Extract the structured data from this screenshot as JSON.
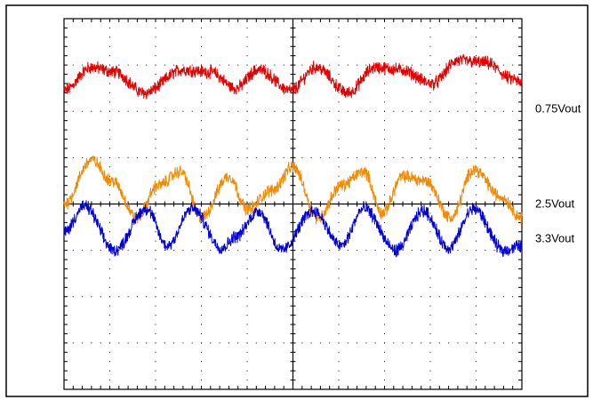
{
  "chart_data": {
    "type": "line",
    "title": "",
    "xlabel": "",
    "ylabel": "",
    "grid": true,
    "x_divisions": 10,
    "y_divisions": 8,
    "xlim": [
      0,
      10
    ],
    "ylim": [
      0,
      8
    ],
    "series": [
      {
        "name": "0.75Vout",
        "color": "#e60000",
        "offset": 6.05,
        "x": [
          0,
          0.6,
          1.1,
          1.75,
          2.6,
          3.2,
          3.75,
          4.25,
          4.95,
          5.5,
          6.2,
          6.8,
          7.35,
          8.05,
          8.6,
          9.2,
          9.8,
          10
        ],
        "values": [
          6.45,
          6.95,
          6.85,
          6.4,
          6.9,
          6.85,
          6.5,
          6.9,
          6.45,
          6.95,
          6.4,
          6.95,
          6.9,
          6.6,
          7.1,
          7.05,
          6.7,
          6.6
        ]
      },
      {
        "name": "2.5Vout",
        "color": "#f08a00",
        "offset": 4.0,
        "x": [
          0,
          0.6,
          1.05,
          1.6,
          2.05,
          2.55,
          3.0,
          3.6,
          4.0,
          4.55,
          5.0,
          5.55,
          6.05,
          6.55,
          6.95,
          7.4,
          7.9,
          8.45,
          8.95,
          9.55,
          10
        ],
        "values": [
          4.0,
          4.95,
          4.5,
          3.7,
          4.4,
          4.7,
          3.7,
          4.6,
          3.9,
          4.3,
          4.8,
          3.7,
          4.4,
          4.7,
          3.8,
          4.6,
          4.5,
          3.7,
          4.75,
          4.15,
          3.7
        ]
      },
      {
        "name": "3.3Vout",
        "color": "#0000d8",
        "offset": 3.25,
        "x": [
          0,
          0.45,
          1.1,
          1.8,
          2.25,
          2.8,
          3.45,
          3.75,
          4.25,
          4.75,
          5.45,
          6.05,
          6.55,
          7.25,
          7.85,
          8.4,
          8.95,
          9.6,
          10
        ],
        "values": [
          3.4,
          3.95,
          3.0,
          3.9,
          3.1,
          3.9,
          3.05,
          3.3,
          3.85,
          3.0,
          3.85,
          3.1,
          3.9,
          3.0,
          3.85,
          3.05,
          3.9,
          3.0,
          3.1
        ]
      }
    ]
  }
}
